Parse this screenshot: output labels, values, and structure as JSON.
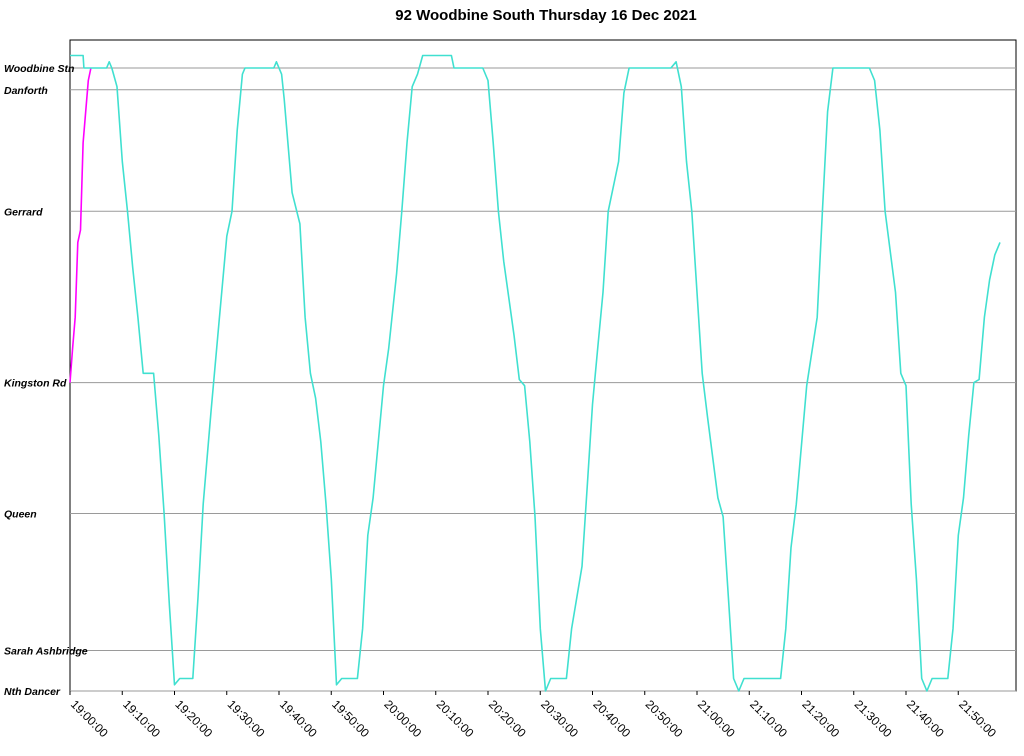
{
  "chart_data": {
    "type": "line",
    "title": "92 Woodbine South Thursday 16 Dec 2021",
    "xlabel": "",
    "ylabel": "",
    "x_range": [
      "19:00:00",
      "21:58:00"
    ],
    "grid": true,
    "stops": [
      {
        "name": "Woodbine Stn",
        "pos": 100
      },
      {
        "name": "Danforth",
        "pos": 96.5
      },
      {
        "name": "Gerrard",
        "pos": 77
      },
      {
        "name": "Kingston Rd",
        "pos": 49.5
      },
      {
        "name": "Queen",
        "pos": 28.5
      },
      {
        "name": "Sarah Ashbridge",
        "pos": 6.5
      },
      {
        "name": "Nth Dancer",
        "pos": 0
      }
    ],
    "x_ticks": [
      "19:00:00",
      "19:10:00",
      "19:20:00",
      "19:30:00",
      "19:40:00",
      "19:50:00",
      "20:00:00",
      "20:10:00",
      "20:20:00",
      "20:30:00",
      "20:40:00",
      "20:50:00",
      "21:00:00",
      "21:10:00",
      "21:20:00",
      "21:30:00",
      "21:40:00",
      "21:50:00"
    ],
    "series": [
      {
        "color": "#ff00ff",
        "points": [
          [
            "19:00:00",
            49.5
          ],
          [
            "19:00:30",
            55
          ],
          [
            "19:01:00",
            60
          ],
          [
            "19:01:30",
            72
          ],
          [
            "19:02:00",
            74
          ],
          [
            "19:02:30",
            88
          ],
          [
            "19:03:00",
            93
          ],
          [
            "19:03:30",
            98
          ],
          [
            "19:04:00",
            100
          ]
        ]
      },
      {
        "color": "#40e0d0",
        "points": [
          [
            "19:00:00",
            102
          ],
          [
            "19:02:30",
            102
          ],
          [
            "19:02:40",
            100
          ],
          [
            "19:07:00",
            100
          ],
          [
            "19:07:30",
            101
          ],
          [
            "19:08:00",
            100
          ],
          [
            "19:09:00",
            97
          ],
          [
            "19:10:00",
            85
          ],
          [
            "19:11:00",
            77
          ],
          [
            "19:12:00",
            68
          ],
          [
            "19:13:00",
            60
          ],
          [
            "19:14:00",
            51
          ],
          [
            "19:16:00",
            51
          ],
          [
            "19:17:00",
            41
          ],
          [
            "19:18:00",
            28.5
          ],
          [
            "19:19:00",
            14
          ],
          [
            "19:20:00",
            1
          ],
          [
            "19:21:00",
            2
          ],
          [
            "19:23:30",
            2
          ],
          [
            "19:24:30",
            15
          ],
          [
            "19:25:30",
            30
          ],
          [
            "19:27:00",
            45
          ],
          [
            "19:28:30",
            59
          ],
          [
            "19:30:00",
            73
          ],
          [
            "19:31:00",
            77
          ],
          [
            "19:32:00",
            90
          ],
          [
            "19:33:00",
            99
          ],
          [
            "19:33:30",
            100
          ],
          [
            "19:39:00",
            100
          ],
          [
            "19:39:30",
            101
          ],
          [
            "19:40:30",
            99
          ],
          [
            "19:41:00",
            95
          ],
          [
            "19:42:30",
            80
          ],
          [
            "19:44:00",
            75
          ],
          [
            "19:45:00",
            60
          ],
          [
            "19:46:00",
            51
          ],
          [
            "19:47:00",
            47
          ],
          [
            "19:48:00",
            40
          ],
          [
            "19:49:00",
            30
          ],
          [
            "19:50:00",
            18
          ],
          [
            "19:51:00",
            1
          ],
          [
            "19:52:00",
            2
          ],
          [
            "19:55:00",
            2
          ],
          [
            "19:56:00",
            10
          ],
          [
            "19:57:00",
            25
          ],
          [
            "19:58:00",
            31
          ],
          [
            "20:00:00",
            49
          ],
          [
            "20:01:00",
            55
          ],
          [
            "20:02:30",
            67
          ],
          [
            "20:03:30",
            77
          ],
          [
            "20:04:30",
            88
          ],
          [
            "20:05:30",
            97
          ],
          [
            "20:06:30",
            99
          ],
          [
            "20:07:30",
            102
          ],
          [
            "20:13:00",
            102
          ],
          [
            "20:13:30",
            100
          ],
          [
            "20:19:00",
            100
          ],
          [
            "20:20:00",
            98
          ],
          [
            "20:21:00",
            88
          ],
          [
            "20:22:00",
            77
          ],
          [
            "20:23:00",
            69
          ],
          [
            "20:25:00",
            57
          ],
          [
            "20:26:00",
            50
          ],
          [
            "20:27:00",
            49
          ],
          [
            "20:28:00",
            40
          ],
          [
            "20:29:00",
            28
          ],
          [
            "20:30:00",
            10
          ],
          [
            "20:31:00",
            0
          ],
          [
            "20:32:00",
            2
          ],
          [
            "20:35:00",
            2
          ],
          [
            "20:36:00",
            10
          ],
          [
            "20:38:00",
            20
          ],
          [
            "20:39:00",
            33
          ],
          [
            "20:40:00",
            46
          ],
          [
            "20:41:00",
            55
          ],
          [
            "20:42:00",
            64
          ],
          [
            "20:43:00",
            77
          ],
          [
            "20:45:00",
            85
          ],
          [
            "20:46:00",
            96
          ],
          [
            "20:47:00",
            100
          ],
          [
            "20:55:00",
            100
          ],
          [
            "20:56:00",
            101
          ],
          [
            "20:57:00",
            97
          ],
          [
            "20:58:00",
            85
          ],
          [
            "20:59:00",
            77
          ],
          [
            "21:00:00",
            64
          ],
          [
            "21:01:00",
            51
          ],
          [
            "21:02:00",
            44
          ],
          [
            "21:04:00",
            31
          ],
          [
            "21:05:00",
            28
          ],
          [
            "21:06:00",
            15
          ],
          [
            "21:07:00",
            2
          ],
          [
            "21:08:00",
            0
          ],
          [
            "21:09:00",
            2
          ],
          [
            "21:16:00",
            2
          ],
          [
            "21:17:00",
            10
          ],
          [
            "21:18:00",
            23
          ],
          [
            "21:19:00",
            30
          ],
          [
            "21:21:00",
            49
          ],
          [
            "21:23:00",
            60
          ],
          [
            "21:24:00",
            77
          ],
          [
            "21:25:00",
            93
          ],
          [
            "21:26:00",
            100
          ],
          [
            "21:33:00",
            100
          ],
          [
            "21:34:00",
            98
          ],
          [
            "21:35:00",
            90
          ],
          [
            "21:36:00",
            77
          ],
          [
            "21:38:00",
            64
          ],
          [
            "21:39:00",
            51
          ],
          [
            "21:40:00",
            49
          ],
          [
            "21:41:00",
            30
          ],
          [
            "21:42:00",
            18
          ],
          [
            "21:43:00",
            2
          ],
          [
            "21:44:00",
            0
          ],
          [
            "21:45:00",
            2
          ],
          [
            "21:48:00",
            2
          ],
          [
            "21:49:00",
            10
          ],
          [
            "21:50:00",
            25
          ],
          [
            "21:51:00",
            31
          ],
          [
            "21:52:00",
            41
          ],
          [
            "21:53:00",
            49.5
          ],
          [
            "21:54:00",
            50
          ],
          [
            "21:55:00",
            60
          ],
          [
            "21:56:00",
            66
          ],
          [
            "21:57:00",
            70
          ],
          [
            "21:58:00",
            72
          ]
        ]
      }
    ]
  }
}
